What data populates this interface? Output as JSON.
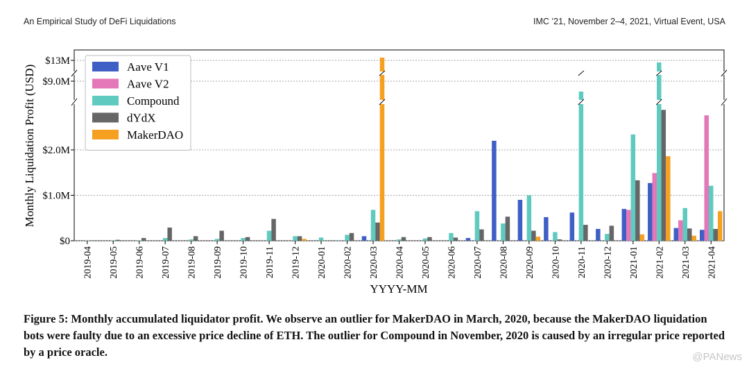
{
  "header": {
    "left": "An Empirical Study of DeFi Liquidations",
    "right": "IMC ’21, November 2–4, 2021, Virtual Event, USA"
  },
  "caption": "Figure 5: Monthly accumulated liquidator profit. We observe an outlier for MakerDAO in March, 2020, because the MakerDAO liquidation bots were faulty due to an excessive price decline of ETH. The outlier for Compound in November, 2020 is caused by an irregular price reported by a price oracle.",
  "watermark": "@PANews",
  "chart_data": {
    "type": "bar",
    "xlabel": "YYYY-MM",
    "ylabel": "Monthly Liquidation Profit (USD)",
    "categories": [
      "2019-04",
      "2019-05",
      "2019-06",
      "2019-07",
      "2019-08",
      "2019-09",
      "2019-10",
      "2019-11",
      "2019-12",
      "2020-01",
      "2020-02",
      "2020-03",
      "2020-04",
      "2020-05",
      "2020-06",
      "2020-07",
      "2020-08",
      "2020-09",
      "2020-10",
      "2020-11",
      "2020-12",
      "2021-01",
      "2021-02",
      "2021-03",
      "2021-04"
    ],
    "y_ticks": [
      {
        "label": "$0",
        "value": 0
      },
      {
        "label": "$1.0M",
        "value": 1000000
      },
      {
        "label": "$2.0M",
        "value": 2000000
      },
      {
        "label": "$9.0M",
        "value": 9000000
      },
      {
        "label": "$13M",
        "value": 13000000
      }
    ],
    "broken_axis": true,
    "grid": "horizontal",
    "legend_position": "top-left",
    "series": [
      {
        "name": "Aave V1",
        "color": "#3f5fc4",
        "values": [
          0,
          0,
          0,
          0,
          0,
          0,
          0,
          0,
          0,
          0,
          5000,
          100000,
          0,
          0,
          0,
          60000,
          2200000,
          900000,
          520000,
          620000,
          260000,
          700000,
          1270000,
          280000,
          240000
        ]
      },
      {
        "name": "Aave V2",
        "color": "#e377b8",
        "values": [
          0,
          0,
          0,
          0,
          0,
          0,
          0,
          0,
          0,
          0,
          0,
          0,
          0,
          0,
          0,
          0,
          0,
          0,
          0,
          0,
          0,
          680000,
          1490000,
          450000,
          2760000
        ]
      },
      {
        "name": "Compound",
        "color": "#5ecac0",
        "values": [
          5000,
          10000,
          10000,
          60000,
          30000,
          40000,
          60000,
          220000,
          100000,
          70000,
          130000,
          680000,
          30000,
          50000,
          170000,
          650000,
          380000,
          1000000,
          190000,
          8500000,
          150000,
          2340000,
          9900000,
          720000,
          1210000
        ]
      },
      {
        "name": "dYdX",
        "color": "#666666",
        "values": [
          0,
          20000,
          60000,
          290000,
          100000,
          220000,
          80000,
          480000,
          100000,
          0,
          170000,
          400000,
          80000,
          80000,
          70000,
          250000,
          530000,
          220000,
          30000,
          350000,
          330000,
          1330000,
          2880000,
          270000,
          260000
        ]
      },
      {
        "name": "MakerDAO",
        "color": "#f5a020",
        "values": [
          0,
          0,
          0,
          0,
          0,
          0,
          0,
          0,
          40000,
          0,
          0,
          13400000,
          0,
          0,
          0,
          0,
          0,
          90000,
          0,
          0,
          0,
          140000,
          1860000,
          110000,
          650000
        ]
      }
    ]
  }
}
